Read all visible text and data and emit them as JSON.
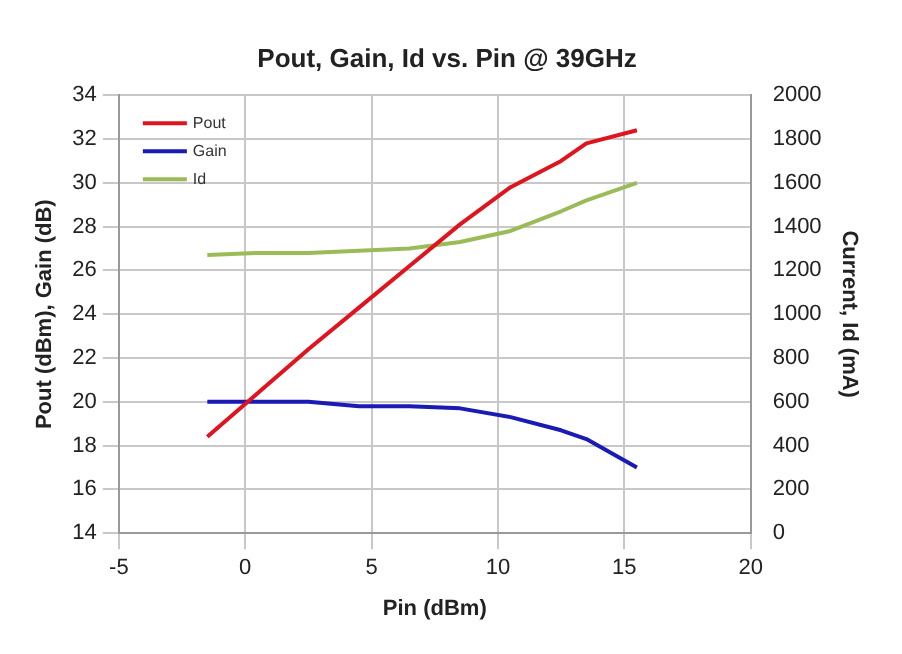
{
  "chart_data": {
    "type": "line",
    "title": "Pout, Gain, Id vs. Pin @ 39GHz",
    "xlabel": "Pin (dBm)",
    "ylabel": "Pout (dBm), Gain (dB)",
    "y2label": "Current, Id (mA)",
    "x": [
      -1.5,
      0.5,
      2.5,
      4.5,
      6.5,
      8.5,
      10.5,
      12.5,
      13.5,
      15.5
    ],
    "series": [
      {
        "name": "Pout",
        "color": "#e0141e",
        "values": [
          18.4,
          20.4,
          22.4,
          24.3,
          26.2,
          28.1,
          29.8,
          31.0,
          31.8,
          32.4
        ]
      },
      {
        "name": "Gain",
        "color": "#1a1ab4",
        "values": [
          20.0,
          20.0,
          20.0,
          19.8,
          19.8,
          19.7,
          19.3,
          18.7,
          18.3,
          17.0
        ]
      },
      {
        "name": "Id",
        "color": "#9bbb59",
        "axis": "y2",
        "values": [
          1270,
          1280,
          1280,
          1290,
          1300,
          1330,
          1380,
          1470,
          1520,
          1600
        ]
      }
    ],
    "xlim": [
      -5,
      20
    ],
    "xticks": [
      -5,
      0,
      5,
      10,
      15,
      20
    ],
    "ylim": [
      14,
      34
    ],
    "yticks": [
      14,
      16,
      18,
      20,
      22,
      24,
      26,
      28,
      30,
      32,
      34
    ],
    "y2lim": [
      0,
      2000
    ],
    "y2ticks": [
      0,
      200,
      400,
      600,
      800,
      1000,
      1200,
      1400,
      1600,
      1800,
      2000
    ],
    "grid": true,
    "legend": "top left",
    "marker": "none",
    "line_style": "solid"
  }
}
